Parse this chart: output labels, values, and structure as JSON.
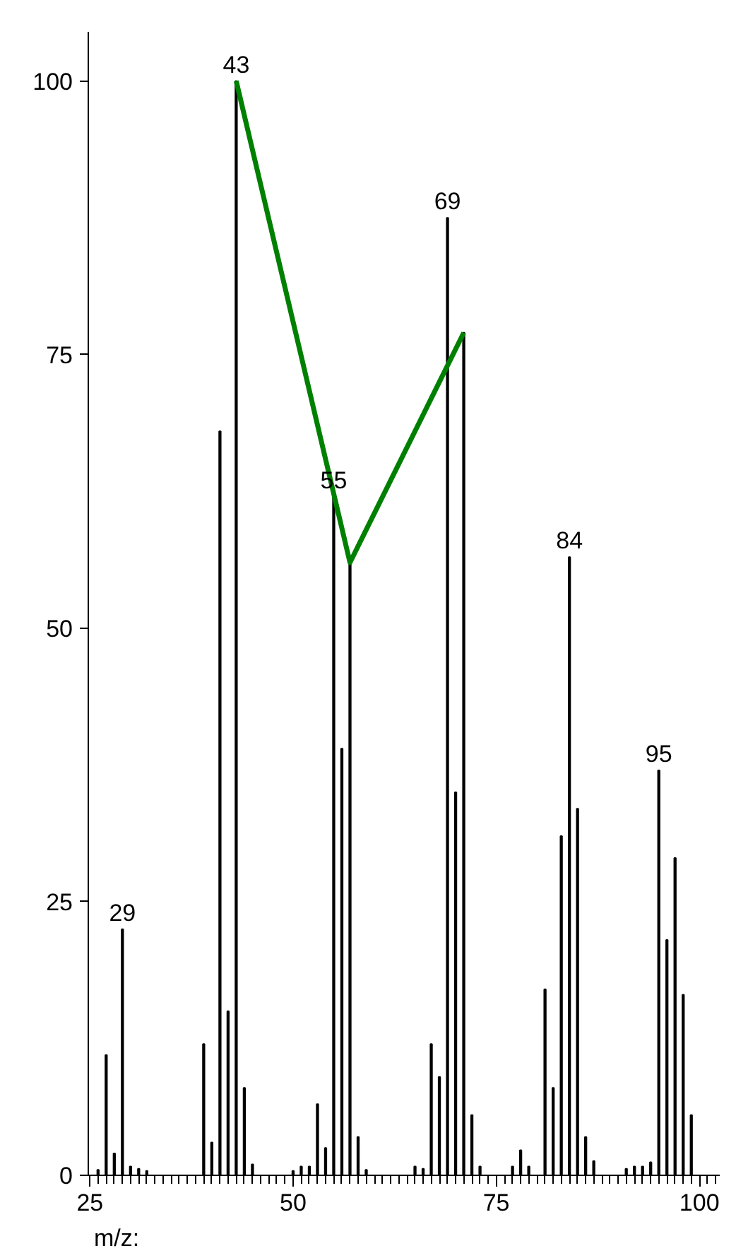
{
  "chart_data": {
    "type": "bar",
    "xlabel": "m/z:",
    "annotations": [
      {
        "text": "29",
        "x": 29,
        "y": 22.5
      },
      {
        "text": "43",
        "x": 43,
        "y": 100
      },
      {
        "text": "55",
        "x": 55,
        "y": 62
      },
      {
        "text": "69",
        "x": 69,
        "y": 87.5
      },
      {
        "text": "84",
        "x": 84,
        "y": 56.5
      },
      {
        "text": "95",
        "x": 95,
        "y": 37
      }
    ],
    "xlim": [
      24.8,
      102.5
    ],
    "ylim": [
      0,
      104.5
    ],
    "xticks": [
      25,
      50,
      75,
      100
    ],
    "yticks": [
      0,
      25,
      50,
      75,
      100
    ],
    "grid": false,
    "marker": "none",
    "series": [
      {
        "color": "#000000",
        "x": [
          26,
          27,
          28,
          29,
          30,
          31,
          32,
          39,
          40,
          41,
          42,
          43,
          44,
          45,
          50,
          51,
          52,
          53,
          54,
          55,
          56,
          57,
          58,
          59,
          65,
          66,
          67,
          68,
          69,
          70,
          71,
          72,
          73,
          77,
          78,
          79,
          81,
          82,
          83,
          84,
          85,
          86,
          87,
          91,
          92,
          93,
          94,
          95,
          96,
          97,
          98,
          99
        ],
        "values": [
          0.5,
          11,
          2,
          22.5,
          0.8,
          0.6,
          0.4,
          12,
          3,
          68,
          15,
          100,
          8,
          1,
          0.4,
          0.8,
          0.8,
          6.5,
          2.5,
          62,
          39,
          56,
          3.5,
          0.5,
          0.8,
          0.6,
          12,
          9,
          87.5,
          35,
          77,
          5.5,
          0.8,
          0.8,
          2.3,
          0.8,
          17,
          8,
          31,
          56.5,
          33.5,
          3.5,
          1.3,
          0.6,
          0.8,
          0.8,
          1.2,
          37,
          21.5,
          29,
          16.5,
          5.5
        ]
      },
      {
        "type": "line",
        "color": "#008000",
        "line_style": "solid",
        "x": [
          43,
          57,
          71
        ],
        "values": [
          100,
          56,
          77
        ]
      }
    ]
  }
}
